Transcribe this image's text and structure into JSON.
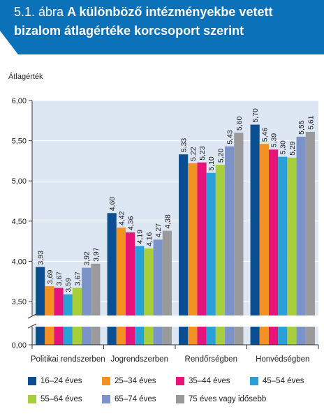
{
  "header": {
    "prefix": "5.1. ábra ",
    "title": "A különböző intézményekbe vetett bizalom átlagértéke korcsoport szerint",
    "background": "#0b72b9"
  },
  "chart_data": {
    "type": "bar",
    "ylabel": "Átlagérték",
    "categories": [
      "Politikai rendszerben",
      "Jogrendszerben",
      "Rendőrségben",
      "Honvédségben"
    ],
    "y_ticks": [
      "6,00",
      "5,50",
      "5,00",
      "4,50",
      "4,00",
      "3,50",
      "0,00"
    ],
    "ylim": [
      3.5,
      6.0
    ],
    "axis_break": true,
    "grid": true,
    "legend_position": "bottom",
    "series": [
      {
        "name": "16–24 éves",
        "color": "#0a4f91",
        "values": [
          3.93,
          4.6,
          5.33,
          5.7
        ],
        "labels": [
          "3,93",
          "4,60",
          "5,33",
          "5,70"
        ]
      },
      {
        "name": "25–34 éves",
        "color": "#f39223",
        "values": [
          3.69,
          4.42,
          5.22,
          5.46
        ],
        "labels": [
          "3,69",
          "4,42",
          "5,22",
          "5,46"
        ]
      },
      {
        "name": "35–44 éves",
        "color": "#e6137b",
        "values": [
          3.67,
          4.36,
          5.23,
          5.39
        ],
        "labels": [
          "3,67",
          "4,36",
          "5,23",
          "5,39"
        ]
      },
      {
        "name": "45–54 éves",
        "color": "#2aa0d9",
        "values": [
          3.59,
          4.19,
          5.1,
          5.3
        ],
        "labels": [
          "3,59",
          "4,19",
          "5,10",
          "5,30"
        ]
      },
      {
        "name": "55–64 éves",
        "color": "#a7cf3b",
        "values": [
          3.67,
          4.16,
          5.2,
          5.29
        ],
        "labels": [
          "3,67",
          "4,16",
          "5,20",
          "5,29"
        ]
      },
      {
        "name": "65–74 éves",
        "color": "#7b93c9",
        "values": [
          3.92,
          4.27,
          5.43,
          5.55
        ],
        "labels": [
          "3,92",
          "4,27",
          "5,43",
          "5,55"
        ]
      },
      {
        "name": "75 éves vagy idősebb",
        "color": "#9a9a9a",
        "values": [
          3.97,
          4.38,
          5.6,
          5.61
        ],
        "labels": [
          "3,97",
          "4,38",
          "5,60",
          "5,61"
        ]
      }
    ]
  }
}
